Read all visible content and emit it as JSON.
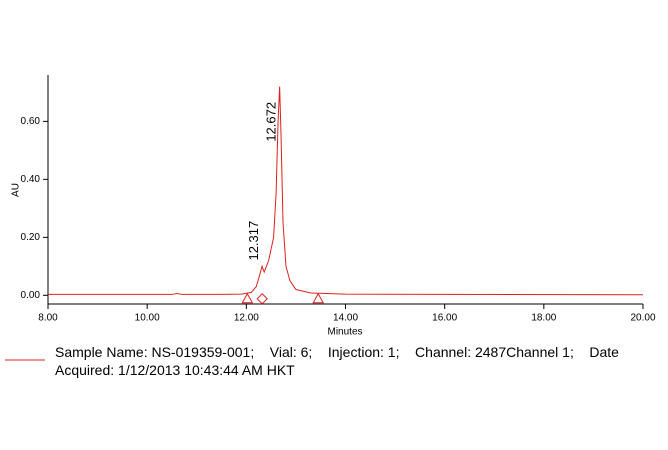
{
  "chart_data": {
    "type": "line",
    "x_label": "Minutes",
    "y_label": "AU",
    "x": [
      8.0,
      10.5,
      10.6,
      10.7,
      11.5,
      11.9,
      12.1,
      12.2,
      12.27,
      12.317,
      12.36,
      12.45,
      12.55,
      12.6,
      12.64,
      12.672,
      12.7,
      12.74,
      12.8,
      12.88,
      13.0,
      13.3,
      14.0,
      20.0
    ],
    "series": [
      {
        "name": "Sample Name: NS-019359-001;    Vial: 6;    Injection: 1;    Channel: 2487Channel 1;    Date Acquired: 1/12/2013 10:43:44 AM HKT",
        "color": "#e02020",
        "values": [
          0.003,
          0.003,
          0.006,
          0.003,
          0.003,
          0.004,
          0.01,
          0.03,
          0.07,
          0.1,
          0.08,
          0.12,
          0.2,
          0.35,
          0.6,
          0.72,
          0.55,
          0.25,
          0.1,
          0.05,
          0.02,
          0.008,
          0.004,
          0.002
        ]
      }
    ],
    "annotations": [
      {
        "text": "12.317",
        "x": 12.317,
        "y": 0.12
      },
      {
        "text": "12.672",
        "x": 12.672,
        "y": 0.53
      }
    ],
    "markers": [
      {
        "shape": "triangle",
        "x": 12.02,
        "y": -0.012
      },
      {
        "shape": "diamond",
        "x": 12.32,
        "y": -0.012
      },
      {
        "shape": "triangle",
        "x": 13.45,
        "y": -0.012
      }
    ],
    "xlim": [
      8.0,
      20.0
    ],
    "xticks": [
      {
        "value": 8,
        "label": "8.00"
      },
      {
        "value": 10,
        "label": "10.00"
      },
      {
        "value": 12,
        "label": "12.00"
      },
      {
        "value": 14,
        "label": "14.00"
      },
      {
        "value": 16,
        "label": "16.00"
      },
      {
        "value": 18,
        "label": "18.00"
      },
      {
        "value": 20,
        "label": "20.00"
      }
    ],
    "ylim": [
      -0.03,
      0.76
    ],
    "yticks": [
      {
        "value": 0,
        "label": "0.00"
      },
      {
        "value": 0.2,
        "label": "0.20"
      },
      {
        "value": 0.4,
        "label": "0.40"
      },
      {
        "value": 0.6,
        "label": "0.60"
      }
    ]
  }
}
